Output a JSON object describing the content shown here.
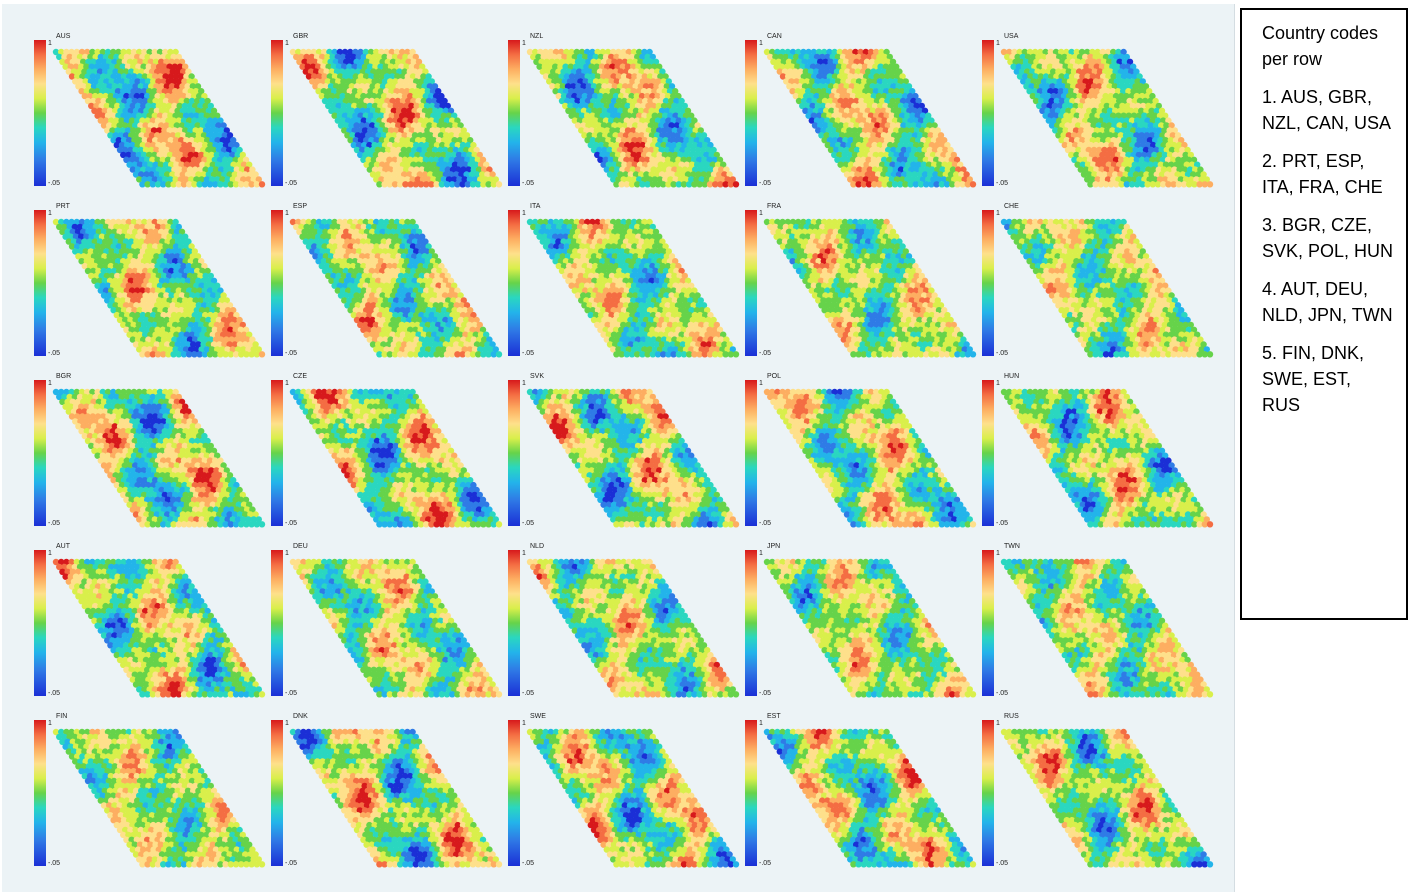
{
  "chart_data": {
    "type": "heatmap",
    "colorbar": {
      "top_label": "1",
      "bottom_label": "-.05"
    },
    "panels": [
      {
        "code": "AUS"
      },
      {
        "code": "GBR"
      },
      {
        "code": "NZL"
      },
      {
        "code": "CAN"
      },
      {
        "code": "USA"
      },
      {
        "code": "PRT"
      },
      {
        "code": "ESP"
      },
      {
        "code": "ITA"
      },
      {
        "code": "FRA"
      },
      {
        "code": "CHE"
      },
      {
        "code": "BGR"
      },
      {
        "code": "CZE"
      },
      {
        "code": "SVK"
      },
      {
        "code": "POL"
      },
      {
        "code": "HUN"
      },
      {
        "code": "AUT"
      },
      {
        "code": "DEU"
      },
      {
        "code": "NLD"
      },
      {
        "code": "JPN"
      },
      {
        "code": "TWN"
      },
      {
        "code": "FIN"
      },
      {
        "code": "DNK"
      },
      {
        "code": "SWE"
      },
      {
        "code": "EST"
      },
      {
        "code": "RUS"
      }
    ],
    "colors": [
      "#1b2fd6",
      "#2f7be6",
      "#23b4ea",
      "#2ad7c0",
      "#66d34a",
      "#d9ef4b",
      "#fee08b",
      "#fdae61",
      "#f46d43",
      "#d7191c"
    ]
  },
  "legend": {
    "title": "Country codes per row",
    "rows": [
      "1. AUS, GBR, NZL, CAN, USA",
      "2. PRT, ESP, ITA, FRA, CHE",
      "3. BGR, CZE, SVK, POL, HUN",
      "4. AUT, DEU, NLD, JPN, TWN",
      "5. FIN, DNK, SWE, EST, RUS"
    ]
  }
}
